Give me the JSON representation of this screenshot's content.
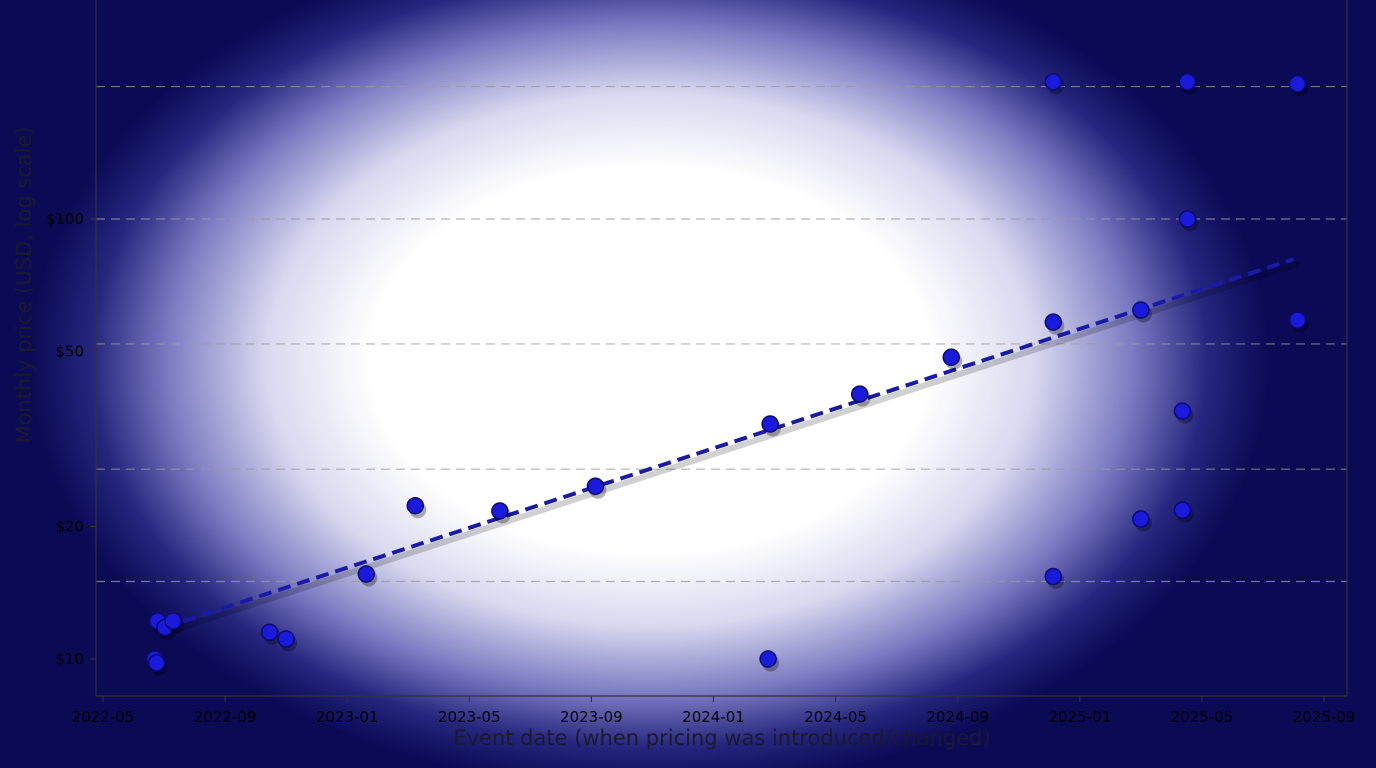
{
  "chart_data": {
    "type": "scatter",
    "title": "",
    "xlabel": "Event date (when pricing was introduced/changed)",
    "ylabel": "Monthly price (USD, log scale)",
    "y_scale": "log",
    "x_ticks": [
      "2022-05",
      "2022-09",
      "2023-01",
      "2023-05",
      "2023-09",
      "2024-01",
      "2024-05",
      "2024-09",
      "2025-01",
      "2025-05",
      "2025-09"
    ],
    "y_ticks": [
      {
        "value": 10,
        "label": "$10"
      },
      {
        "value": 20,
        "label": "$20"
      },
      {
        "value": 50,
        "label": "$50"
      },
      {
        "value": 100,
        "label": "$100"
      }
    ],
    "gridlines_y": [
      15,
      27,
      52,
      100,
      200
    ],
    "grid": true,
    "colors": {
      "points": "#1a1adc",
      "trend": "#1a1aa8",
      "grid": "#9a9a9a"
    },
    "points": [
      {
        "x": "2022-06-22",
        "y": 10
      },
      {
        "x": "2022-06-24",
        "y": 9.8
      },
      {
        "x": "2022-06-25",
        "y": 12.2
      },
      {
        "x": "2022-07-02",
        "y": 11.8
      },
      {
        "x": "2022-07-10",
        "y": 12.2
      },
      {
        "x": "2022-10-15",
        "y": 11.5
      },
      {
        "x": "2022-11-01",
        "y": 11.1
      },
      {
        "x": "2023-01-20",
        "y": 15.6
      },
      {
        "x": "2023-03-08",
        "y": 22.3
      },
      {
        "x": "2023-06-01",
        "y": 21.7
      },
      {
        "x": "2023-09-05",
        "y": 24.7
      },
      {
        "x": "2024-02-25",
        "y": 10
      },
      {
        "x": "2024-02-27",
        "y": 34.2
      },
      {
        "x": "2024-05-25",
        "y": 40.0
      },
      {
        "x": "2024-08-25",
        "y": 48.5
      },
      {
        "x": "2024-12-05",
        "y": 15.4
      },
      {
        "x": "2024-12-05",
        "y": 58.3
      },
      {
        "x": "2024-12-05",
        "y": 205
      },
      {
        "x": "2025-03-01",
        "y": 20.8
      },
      {
        "x": "2025-03-01",
        "y": 62.1
      },
      {
        "x": "2025-04-12",
        "y": 36.6
      },
      {
        "x": "2025-04-12",
        "y": 21.8
      },
      {
        "x": "2025-04-17",
        "y": 100
      },
      {
        "x": "2025-04-17",
        "y": 205
      },
      {
        "x": "2025-08-05",
        "y": 58.9
      },
      {
        "x": "2025-08-05",
        "y": 203
      }
    ],
    "trend_line": {
      "style": "dashed",
      "from": {
        "x": "2022-07-01",
        "y": 11.8
      },
      "to": {
        "x": "2025-08-01",
        "y": 81
      }
    }
  }
}
